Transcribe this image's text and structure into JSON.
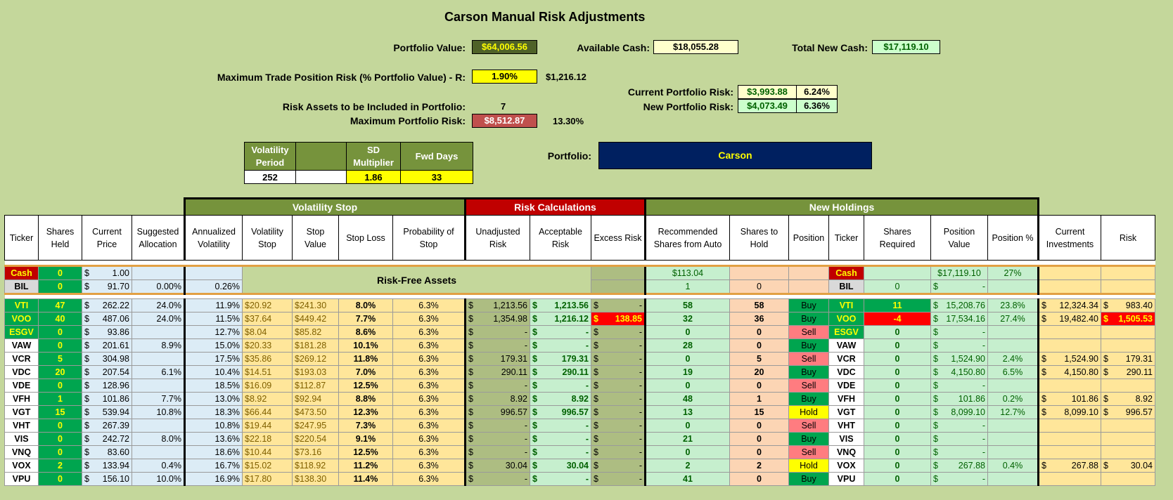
{
  "title": "Carson Manual Risk Adjustments",
  "summary": {
    "portfolio_value_label": "Portfolio Value:",
    "portfolio_value": "$64,006.56",
    "available_cash_label": "Available Cash:",
    "available_cash": "$18,055.28",
    "total_new_cash_label": "Total New Cash:",
    "total_new_cash": "$17,119.10",
    "max_trade_risk_label": "Maximum Trade Position Risk (% Portfolio Value) - R:",
    "max_trade_risk_pct": "1.90%",
    "max_trade_risk_value": "$1,216.12",
    "current_risk_label": "Current Portfolio Risk:",
    "current_risk_value": "$3,993.88",
    "current_risk_pct": "6.24%",
    "new_risk_label": "New Portfolio Risk:",
    "new_risk_value": "$4,073.49",
    "new_risk_pct": "6.36%",
    "risk_assets_label": "Risk Assets to be Included in Portfolio:",
    "risk_assets_value": "7",
    "max_portfolio_risk_label": "Maximum Portfolio Risk:",
    "max_portfolio_risk_value": "$8,512.87",
    "max_portfolio_risk_pct": "13.30%",
    "portfolio_label": "Portfolio:",
    "portfolio_name": "Carson"
  },
  "params": {
    "vol_period_label": "Volatility Period",
    "vol_period_value": "252",
    "sd_mult_label": "SD Multiplier",
    "sd_mult_value": "1.86",
    "fwd_days_label": "Fwd Days",
    "fwd_days_value": "33"
  },
  "sections": {
    "volatility_stop": "Volatility Stop",
    "risk_calculations": "Risk Calculations",
    "new_holdings": "New Holdings"
  },
  "headers": [
    "Ticker",
    "Shares Held",
    "Current Price",
    "Suggested Allocation",
    "Annualized Volatility",
    "Volatility Stop",
    "Stop Value",
    "Stop Loss",
    "Probability of Stop",
    "Unadjusted Risk",
    "Acceptable Risk",
    "Excess Risk",
    "Recommended Shares from Auto",
    "Shares to Hold",
    "Position",
    "Ticker",
    "Shares Required",
    "Position Value",
    "Position %",
    "Current Investments",
    "Risk"
  ],
  "risk_free_label": "Risk-Free Assets",
  "risk_free_rows": [
    {
      "ticker": "Cash",
      "shares": "0",
      "price": "1.00",
      "alloc": "",
      "vol": "",
      "rec": "$113.04",
      "hold": "",
      "pos": "",
      "ticker2": "Cash",
      "req": "",
      "posval": "$17,119.10",
      "pospct": "27%"
    },
    {
      "ticker": "BIL",
      "shares": "0",
      "price": "91.70",
      "alloc": "0.00%",
      "vol": "0.26%",
      "rec": "1",
      "hold": "0",
      "pos": "",
      "ticker2": "BIL",
      "req": "0",
      "posval": "-",
      "pospct": ""
    }
  ],
  "rows": [
    {
      "ticker": "VTI",
      "shares": "47",
      "price": "262.22",
      "alloc": "24.0%",
      "vol": "11.9%",
      "vstop": "$20.92",
      "sval": "$241.30",
      "sloss": "8.0%",
      "prob": "6.3%",
      "unadj": "1,213.56",
      "accept": "1,213.56",
      "excess": "-",
      "rec": "58",
      "hold": "58",
      "pos": "Buy",
      "req": "11",
      "posval": "15,208.76",
      "pospct": "23.8%",
      "curinv": "12,324.34",
      "risk": "983.40"
    },
    {
      "ticker": "VOO",
      "shares": "40",
      "price": "487.06",
      "alloc": "24.0%",
      "vol": "11.5%",
      "vstop": "$37.64",
      "sval": "$449.42",
      "sloss": "7.7%",
      "prob": "6.3%",
      "unadj": "1,354.98",
      "accept": "1,216.12",
      "excess": "138.85",
      "rec": "32",
      "hold": "36",
      "pos": "Buy",
      "req": "-4",
      "posval": "17,534.16",
      "pospct": "27.4%",
      "curinv": "19,482.40",
      "risk": "1,505.53"
    },
    {
      "ticker": "ESGV",
      "shares": "0",
      "price": "93.86",
      "alloc": "",
      "vol": "12.7%",
      "vstop": "$8.04",
      "sval": "$85.82",
      "sloss": "8.6%",
      "prob": "6.3%",
      "unadj": "-",
      "accept": "-",
      "excess": "-",
      "rec": "0",
      "hold": "0",
      "pos": "Sell",
      "req": "0",
      "posval": "-",
      "pospct": "",
      "curinv": "",
      "risk": ""
    },
    {
      "ticker": "VAW",
      "shares": "0",
      "price": "201.61",
      "alloc": "8.9%",
      "vol": "15.0%",
      "vstop": "$20.33",
      "sval": "$181.28",
      "sloss": "10.1%",
      "prob": "6.3%",
      "unadj": "-",
      "accept": "-",
      "excess": "-",
      "rec": "28",
      "hold": "0",
      "pos": "Buy",
      "req": "0",
      "posval": "-",
      "pospct": "",
      "curinv": "",
      "risk": ""
    },
    {
      "ticker": "VCR",
      "shares": "5",
      "price": "304.98",
      "alloc": "",
      "vol": "17.5%",
      "vstop": "$35.86",
      "sval": "$269.12",
      "sloss": "11.8%",
      "prob": "6.3%",
      "unadj": "179.31",
      "accept": "179.31",
      "excess": "-",
      "rec": "0",
      "hold": "5",
      "pos": "Sell",
      "req": "0",
      "posval": "1,524.90",
      "pospct": "2.4%",
      "curinv": "1,524.90",
      "risk": "179.31"
    },
    {
      "ticker": "VDC",
      "shares": "20",
      "price": "207.54",
      "alloc": "6.1%",
      "vol": "10.4%",
      "vstop": "$14.51",
      "sval": "$193.03",
      "sloss": "7.0%",
      "prob": "6.3%",
      "unadj": "290.11",
      "accept": "290.11",
      "excess": "-",
      "rec": "19",
      "hold": "20",
      "pos": "Buy",
      "req": "0",
      "posval": "4,150.80",
      "pospct": "6.5%",
      "curinv": "4,150.80",
      "risk": "290.11"
    },
    {
      "ticker": "VDE",
      "shares": "0",
      "price": "128.96",
      "alloc": "",
      "vol": "18.5%",
      "vstop": "$16.09",
      "sval": "$112.87",
      "sloss": "12.5%",
      "prob": "6.3%",
      "unadj": "-",
      "accept": "-",
      "excess": "-",
      "rec": "0",
      "hold": "0",
      "pos": "Sell",
      "req": "0",
      "posval": "-",
      "pospct": "",
      "curinv": "",
      "risk": ""
    },
    {
      "ticker": "VFH",
      "shares": "1",
      "price": "101.86",
      "alloc": "7.7%",
      "vol": "13.0%",
      "vstop": "$8.92",
      "sval": "$92.94",
      "sloss": "8.8%",
      "prob": "6.3%",
      "unadj": "8.92",
      "accept": "8.92",
      "excess": "-",
      "rec": "48",
      "hold": "1",
      "pos": "Buy",
      "req": "0",
      "posval": "101.86",
      "pospct": "0.2%",
      "curinv": "101.86",
      "risk": "8.92"
    },
    {
      "ticker": "VGT",
      "shares": "15",
      "price": "539.94",
      "alloc": "10.8%",
      "vol": "18.3%",
      "vstop": "$66.44",
      "sval": "$473.50",
      "sloss": "12.3%",
      "prob": "6.3%",
      "unadj": "996.57",
      "accept": "996.57",
      "excess": "-",
      "rec": "13",
      "hold": "15",
      "pos": "Hold",
      "req": "0",
      "posval": "8,099.10",
      "pospct": "12.7%",
      "curinv": "8,099.10",
      "risk": "996.57"
    },
    {
      "ticker": "VHT",
      "shares": "0",
      "price": "267.39",
      "alloc": "",
      "vol": "10.8%",
      "vstop": "$19.44",
      "sval": "$247.95",
      "sloss": "7.3%",
      "prob": "6.3%",
      "unadj": "-",
      "accept": "-",
      "excess": "-",
      "rec": "0",
      "hold": "0",
      "pos": "Sell",
      "req": "0",
      "posval": "-",
      "pospct": "",
      "curinv": "",
      "risk": ""
    },
    {
      "ticker": "VIS",
      "shares": "0",
      "price": "242.72",
      "alloc": "8.0%",
      "vol": "13.6%",
      "vstop": "$22.18",
      "sval": "$220.54",
      "sloss": "9.1%",
      "prob": "6.3%",
      "unadj": "-",
      "accept": "-",
      "excess": "-",
      "rec": "21",
      "hold": "0",
      "pos": "Buy",
      "req": "0",
      "posval": "-",
      "pospct": "",
      "curinv": "",
      "risk": ""
    },
    {
      "ticker": "VNQ",
      "shares": "0",
      "price": "83.60",
      "alloc": "",
      "vol": "18.6%",
      "vstop": "$10.44",
      "sval": "$73.16",
      "sloss": "12.5%",
      "prob": "6.3%",
      "unadj": "-",
      "accept": "-",
      "excess": "-",
      "rec": "0",
      "hold": "0",
      "pos": "Sell",
      "req": "0",
      "posval": "-",
      "pospct": "",
      "curinv": "",
      "risk": ""
    },
    {
      "ticker": "VOX",
      "shares": "2",
      "price": "133.94",
      "alloc": "0.4%",
      "vol": "16.7%",
      "vstop": "$15.02",
      "sval": "$118.92",
      "sloss": "11.2%",
      "prob": "6.3%",
      "unadj": "30.04",
      "accept": "30.04",
      "excess": "-",
      "rec": "2",
      "hold": "2",
      "pos": "Hold",
      "req": "0",
      "posval": "267.88",
      "pospct": "0.4%",
      "curinv": "267.88",
      "risk": "30.04"
    },
    {
      "ticker": "VPU",
      "shares": "0",
      "price": "156.10",
      "alloc": "10.0%",
      "vol": "16.9%",
      "vstop": "$17.80",
      "sval": "$138.30",
      "sloss": "11.4%",
      "prob": "6.3%",
      "unadj": "-",
      "accept": "-",
      "excess": "-",
      "rec": "41",
      "hold": "0",
      "pos": "Buy",
      "req": "0",
      "posval": "-",
      "pospct": "",
      "curinv": "",
      "risk": ""
    }
  ],
  "colors": {
    "background": "#c4d79b",
    "olive_header": "#76933c",
    "risk_header": "#c00000",
    "portfolio_box": "#002060",
    "buy": "#00a54f",
    "sell": "#ff7c80",
    "hold": "#ffff00"
  }
}
